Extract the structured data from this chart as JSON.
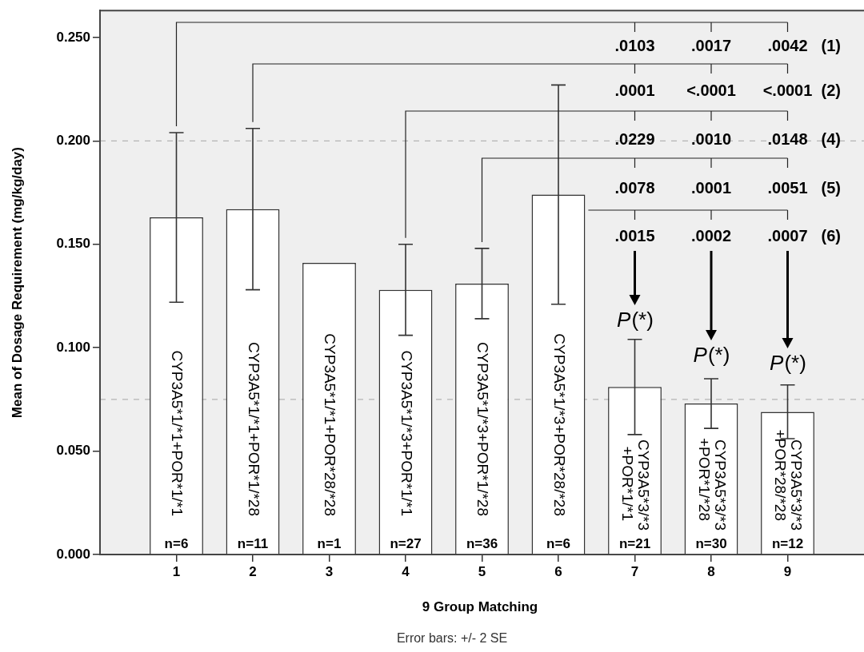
{
  "chart_data": {
    "type": "bar",
    "xlabel": "9 Group Matching",
    "ylabel": "Mean of Dosage Requirement (mg/kg/day)",
    "categories": [
      "1",
      "2",
      "3",
      "4",
      "5",
      "6",
      "7",
      "8",
      "9"
    ],
    "values": [
      0.163,
      0.167,
      0.141,
      0.128,
      0.131,
      0.174,
      0.081,
      0.073,
      0.069
    ],
    "errors": [
      0.041,
      0.039,
      null,
      0.022,
      0.017,
      0.053,
      0.023,
      0.012,
      0.013
    ],
    "color": "#ffffff",
    "ylim": [
      0,
      0.263
    ],
    "yticks": [
      {
        "value": 0,
        "label": "0.000"
      },
      {
        "value": 0.05,
        "label": "0.050"
      },
      {
        "value": 0.1,
        "label": "0.100"
      },
      {
        "value": 0.15,
        "label": "0.150"
      },
      {
        "value": 0.2,
        "label": "0.200"
      },
      {
        "value": 0.25,
        "label": "0.250"
      }
    ],
    "ref_lines": [
      {
        "axis": "y",
        "value": 0.2,
        "color": "#b4b4b4",
        "line_style": "dashed"
      },
      {
        "axis": "y",
        "value": 0.075,
        "color": "#b4b4b4",
        "line_style": "dashed"
      }
    ],
    "legend": false,
    "annotations": [
      "CYP3A5*1/*1+POR*1/*1",
      "CYP3A5*1/*1+POR*1/*28",
      "CYP3A5*1/*1+POR*28/*28",
      "CYP3A5*1/*3+POR*1/*1",
      "CYP3A5*1/*3+POR*1/*28",
      "CYP3A5*1/*3+POR*28/*28",
      "CYP3A5*3/*3\n+POR*1/*1",
      "CYP3A5*3/*3\n+POR*1/*28",
      "CYP3A5*3/*3\n+POR*28/*28",
      "n=6",
      "n=11",
      "n=1",
      "n=27",
      "n=36",
      "n=6",
      "n=21",
      "n=30",
      "n=12",
      ".0103",
      ".0017",
      ".0042",
      ".0001",
      "<.0001",
      "<.0001",
      ".0229",
      ".0010",
      ".0148",
      ".0078",
      ".0001",
      ".0051",
      ".0015",
      ".0002",
      ".0007",
      "P(*)",
      "P(*)",
      "P(*)",
      "(1)",
      "(2)",
      "(4)",
      "(5)",
      "(6)",
      "Error bars: +/- 2 SE"
    ]
  }
}
